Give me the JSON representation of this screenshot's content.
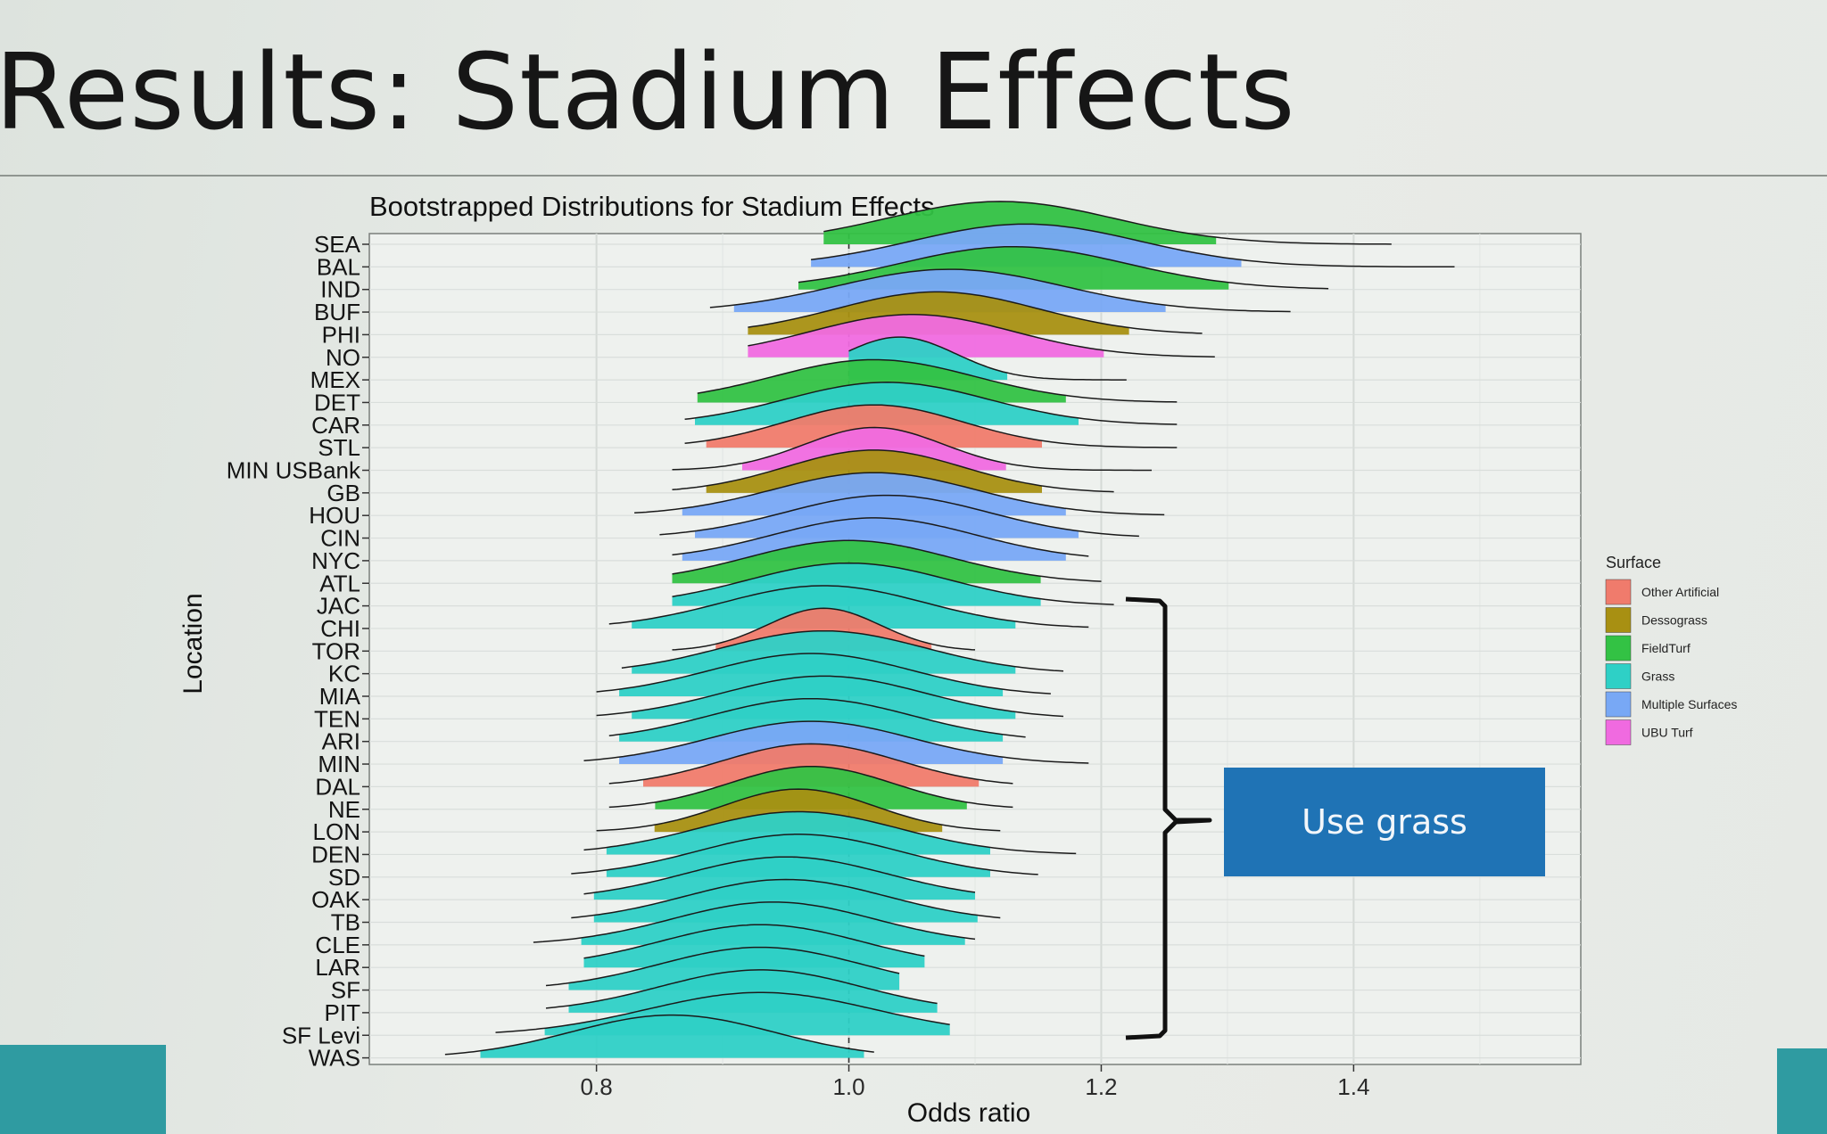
{
  "slide": {
    "title": "Results: Stadium Effects",
    "callout": "Use grass"
  },
  "chart_data": {
    "type": "ridgeline",
    "title": "Bootstrapped Distributions for Stadium Effects",
    "xlabel": "Odds ratio",
    "ylabel": "Location",
    "xlim": [
      0.62,
      1.58
    ],
    "xticks": [
      0.8,
      1.0,
      1.2,
      1.4
    ],
    "tick_labels": [
      "0.8",
      "1.0",
      "1.2",
      "1.4"
    ],
    "reference_line": 1.0,
    "grid": true,
    "legend": {
      "title": "Surface",
      "position": "right",
      "entries": [
        {
          "key": "other_artificial",
          "label": "Other Artificial",
          "color": "#f07b6c"
        },
        {
          "key": "desso",
          "label": "Dessograss",
          "color": "#a89012"
        },
        {
          "key": "fieldturf",
          "label": "FieldTurf",
          "color": "#33c244"
        },
        {
          "key": "grass",
          "label": "Grass",
          "color": "#2ed0c6"
        },
        {
          "key": "multiple",
          "label": "Multiple Surfaces",
          "color": "#78a8f5"
        },
        {
          "key": "ubu",
          "label": "UBU Turf",
          "color": "#f06ae0"
        }
      ]
    },
    "series": [
      {
        "location": "SEA",
        "surface": "fieldturf",
        "mode": 1.12,
        "sd": 0.09,
        "range": [
          0.98,
          1.43
        ]
      },
      {
        "location": "BAL",
        "surface": "multiple",
        "mode": 1.14,
        "sd": 0.09,
        "range": [
          0.97,
          1.48
        ]
      },
      {
        "location": "IND",
        "surface": "fieldturf",
        "mode": 1.13,
        "sd": 0.09,
        "range": [
          0.96,
          1.38
        ]
      },
      {
        "location": "BUF",
        "surface": "multiple",
        "mode": 1.08,
        "sd": 0.09,
        "range": [
          0.89,
          1.35
        ]
      },
      {
        "location": "PHI",
        "surface": "desso",
        "mode": 1.07,
        "sd": 0.08,
        "range": [
          0.92,
          1.28
        ]
      },
      {
        "location": "NO",
        "surface": "ubu",
        "mode": 1.05,
        "sd": 0.08,
        "range": [
          0.92,
          1.29
        ]
      },
      {
        "location": "MEX",
        "surface": "grass",
        "mode": 1.04,
        "sd": 0.045,
        "range": [
          1.0,
          1.22
        ]
      },
      {
        "location": "DET",
        "surface": "fieldturf",
        "mode": 1.02,
        "sd": 0.08,
        "range": [
          0.88,
          1.26
        ]
      },
      {
        "location": "CAR",
        "surface": "grass",
        "mode": 1.03,
        "sd": 0.08,
        "range": [
          0.87,
          1.26
        ]
      },
      {
        "location": "STL",
        "surface": "other_artificial",
        "mode": 1.02,
        "sd": 0.07,
        "range": [
          0.87,
          1.26
        ]
      },
      {
        "location": "MIN USBank",
        "surface": "ubu",
        "mode": 1.02,
        "sd": 0.055,
        "range": [
          0.86,
          1.24
        ]
      },
      {
        "location": "GB",
        "surface": "desso",
        "mode": 1.02,
        "sd": 0.07,
        "range": [
          0.86,
          1.21
        ]
      },
      {
        "location": "HOU",
        "surface": "multiple",
        "mode": 1.02,
        "sd": 0.08,
        "range": [
          0.83,
          1.25
        ]
      },
      {
        "location": "CIN",
        "surface": "multiple",
        "mode": 1.03,
        "sd": 0.08,
        "range": [
          0.85,
          1.23
        ]
      },
      {
        "location": "NYC",
        "surface": "multiple",
        "mode": 1.02,
        "sd": 0.08,
        "range": [
          0.86,
          1.19
        ]
      },
      {
        "location": "ATL",
        "surface": "fieldturf",
        "mode": 1.0,
        "sd": 0.08,
        "range": [
          0.86,
          1.2
        ]
      },
      {
        "location": "JAC",
        "surface": "grass",
        "mode": 1.0,
        "sd": 0.08,
        "range": [
          0.86,
          1.21
        ]
      },
      {
        "location": "CHI",
        "surface": "grass",
        "mode": 0.98,
        "sd": 0.08,
        "range": [
          0.81,
          1.19
        ]
      },
      {
        "location": "TOR",
        "surface": "other_artificial",
        "mode": 0.98,
        "sd": 0.045,
        "range": [
          0.86,
          1.1
        ]
      },
      {
        "location": "KC",
        "surface": "grass",
        "mode": 0.98,
        "sd": 0.08,
        "range": [
          0.82,
          1.17
        ]
      },
      {
        "location": "MIA",
        "surface": "grass",
        "mode": 0.97,
        "sd": 0.08,
        "range": [
          0.8,
          1.16
        ]
      },
      {
        "location": "TEN",
        "surface": "grass",
        "mode": 0.98,
        "sd": 0.08,
        "range": [
          0.8,
          1.17
        ]
      },
      {
        "location": "ARI",
        "surface": "grass",
        "mode": 0.97,
        "sd": 0.08,
        "range": [
          0.81,
          1.14
        ]
      },
      {
        "location": "MIN",
        "surface": "multiple",
        "mode": 0.97,
        "sd": 0.08,
        "range": [
          0.79,
          1.19
        ]
      },
      {
        "location": "DAL",
        "surface": "other_artificial",
        "mode": 0.97,
        "sd": 0.07,
        "range": [
          0.81,
          1.13
        ]
      },
      {
        "location": "NE",
        "surface": "fieldturf",
        "mode": 0.97,
        "sd": 0.065,
        "range": [
          0.81,
          1.13
        ]
      },
      {
        "location": "LON",
        "surface": "desso",
        "mode": 0.96,
        "sd": 0.06,
        "range": [
          0.8,
          1.12
        ]
      },
      {
        "location": "DEN",
        "surface": "grass",
        "mode": 0.96,
        "sd": 0.08,
        "range": [
          0.79,
          1.18
        ]
      },
      {
        "location": "SD",
        "surface": "grass",
        "mode": 0.96,
        "sd": 0.08,
        "range": [
          0.78,
          1.15
        ]
      },
      {
        "location": "OAK",
        "surface": "grass",
        "mode": 0.95,
        "sd": 0.08,
        "range": [
          0.79,
          1.1
        ]
      },
      {
        "location": "TB",
        "surface": "grass",
        "mode": 0.95,
        "sd": 0.08,
        "range": [
          0.78,
          1.12
        ]
      },
      {
        "location": "CLE",
        "surface": "grass",
        "mode": 0.94,
        "sd": 0.08,
        "range": [
          0.75,
          1.1
        ]
      },
      {
        "location": "LAR",
        "surface": "grass",
        "mode": 0.93,
        "sd": 0.08,
        "range": [
          0.79,
          1.06
        ]
      },
      {
        "location": "SF",
        "surface": "grass",
        "mode": 0.93,
        "sd": 0.08,
        "range": [
          0.76,
          1.04
        ]
      },
      {
        "location": "PIT",
        "surface": "grass",
        "mode": 0.93,
        "sd": 0.08,
        "range": [
          0.76,
          1.07
        ]
      },
      {
        "location": "SF Levi",
        "surface": "grass",
        "mode": 0.93,
        "sd": 0.09,
        "range": [
          0.72,
          1.08
        ]
      },
      {
        "location": "WAS",
        "surface": "grass",
        "mode": 0.86,
        "sd": 0.08,
        "range": [
          0.68,
          1.02
        ]
      }
    ]
  }
}
